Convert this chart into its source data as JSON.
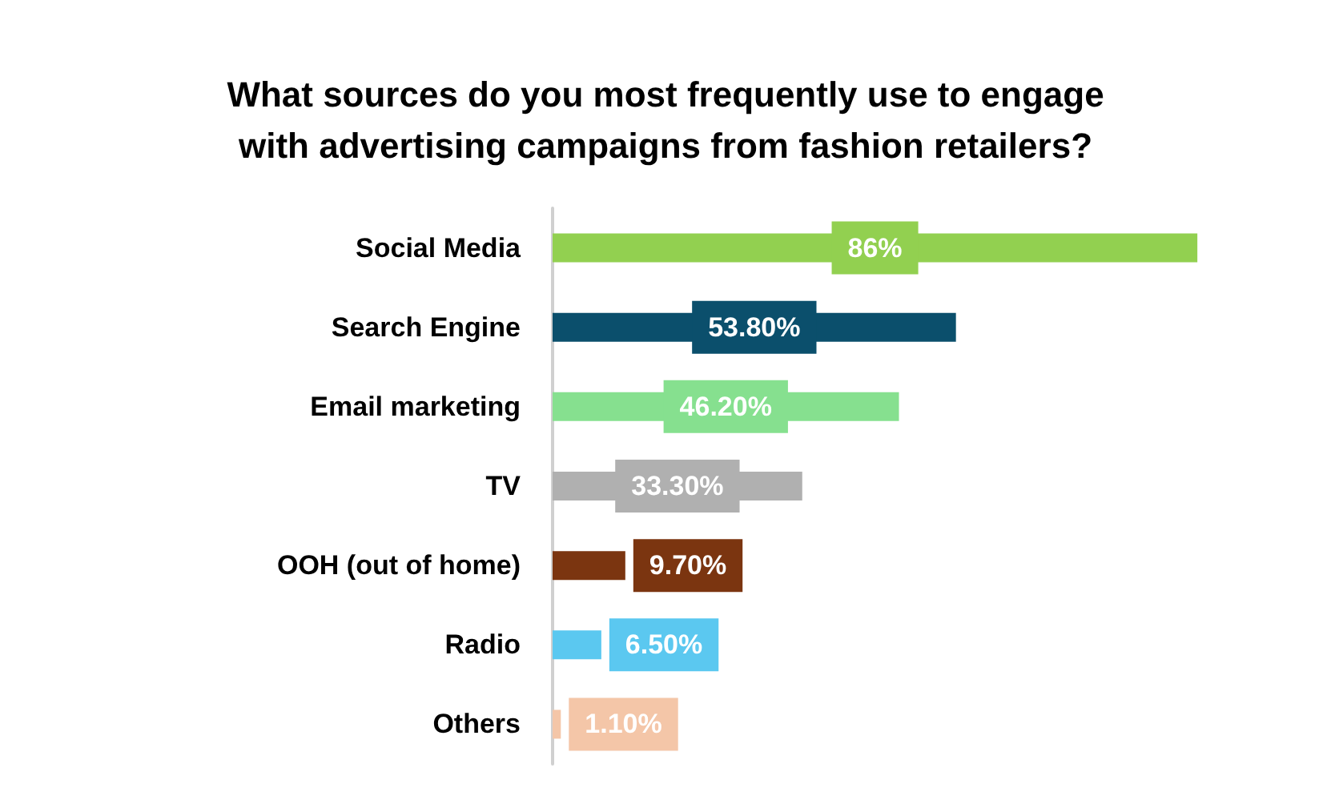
{
  "chart_data": {
    "type": "bar",
    "orientation": "horizontal",
    "title": "What sources do you most frequently use to engage\nwith advertising campaigns from fashion retailers?",
    "categories": [
      "Social Media",
      "Search Engine",
      "Email marketing",
      "TV",
      "OOH (out of home)",
      "Radio",
      "Others"
    ],
    "values": [
      86,
      53.8,
      46.2,
      33.3,
      9.7,
      6.5,
      1.1
    ],
    "colors": [
      "#92d050",
      "#0b4f6c",
      "#86e08f",
      "#b0b0b0",
      "#7b3510",
      "#5bc8f0",
      "#f4c6a8"
    ],
    "value_labels": [
      "86%",
      "53.80%",
      "46.20%",
      "33.30%",
      "9.70%",
      "6.50%",
      "1.10%"
    ],
    "grid": false
  }
}
